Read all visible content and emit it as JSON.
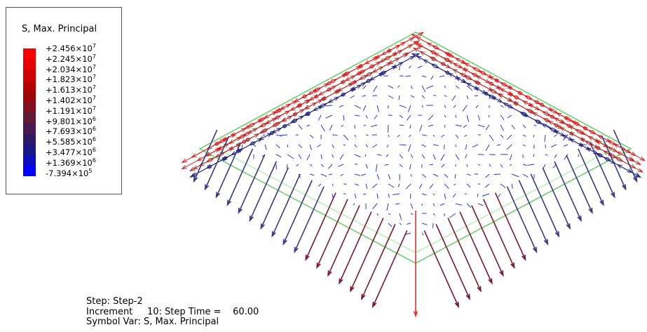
{
  "legend": {
    "title": "S, Max. Principal",
    "entries": [
      {
        "mantissa": "+2.456×10",
        "exponent": "7"
      },
      {
        "mantissa": "+2.245×10",
        "exponent": "7"
      },
      {
        "mantissa": "+2.034×10",
        "exponent": "7"
      },
      {
        "mantissa": "+1.823×10",
        "exponent": "7"
      },
      {
        "mantissa": "+1.613×10",
        "exponent": "7"
      },
      {
        "mantissa": "+1.402×10",
        "exponent": "7"
      },
      {
        "mantissa": "+1.191×10",
        "exponent": "7"
      },
      {
        "mantissa": "+9.801×10",
        "exponent": "6"
      },
      {
        "mantissa": "+7.693×10",
        "exponent": "6"
      },
      {
        "mantissa": "+5.585×10",
        "exponent": "6"
      },
      {
        "mantissa": "+3.477×10",
        "exponent": "6"
      },
      {
        "mantissa": "+1.369×10",
        "exponent": "6"
      },
      {
        "mantissa": "-7.394×10",
        "exponent": "5"
      }
    ],
    "band_colors": [
      "#ff0000",
      "#e80000",
      "#d00000",
      "#b80000",
      "#9c0808",
      "#801020",
      "#621838",
      "#481850",
      "#301868",
      "#1a1888",
      "#0c0cc0",
      "#0000ff"
    ]
  },
  "footer": {
    "lines": [
      "Step: Step-2",
      "Increment     10: Step Time =    60.00",
      "Symbol Var: S, Max. Principal"
    ]
  }
}
